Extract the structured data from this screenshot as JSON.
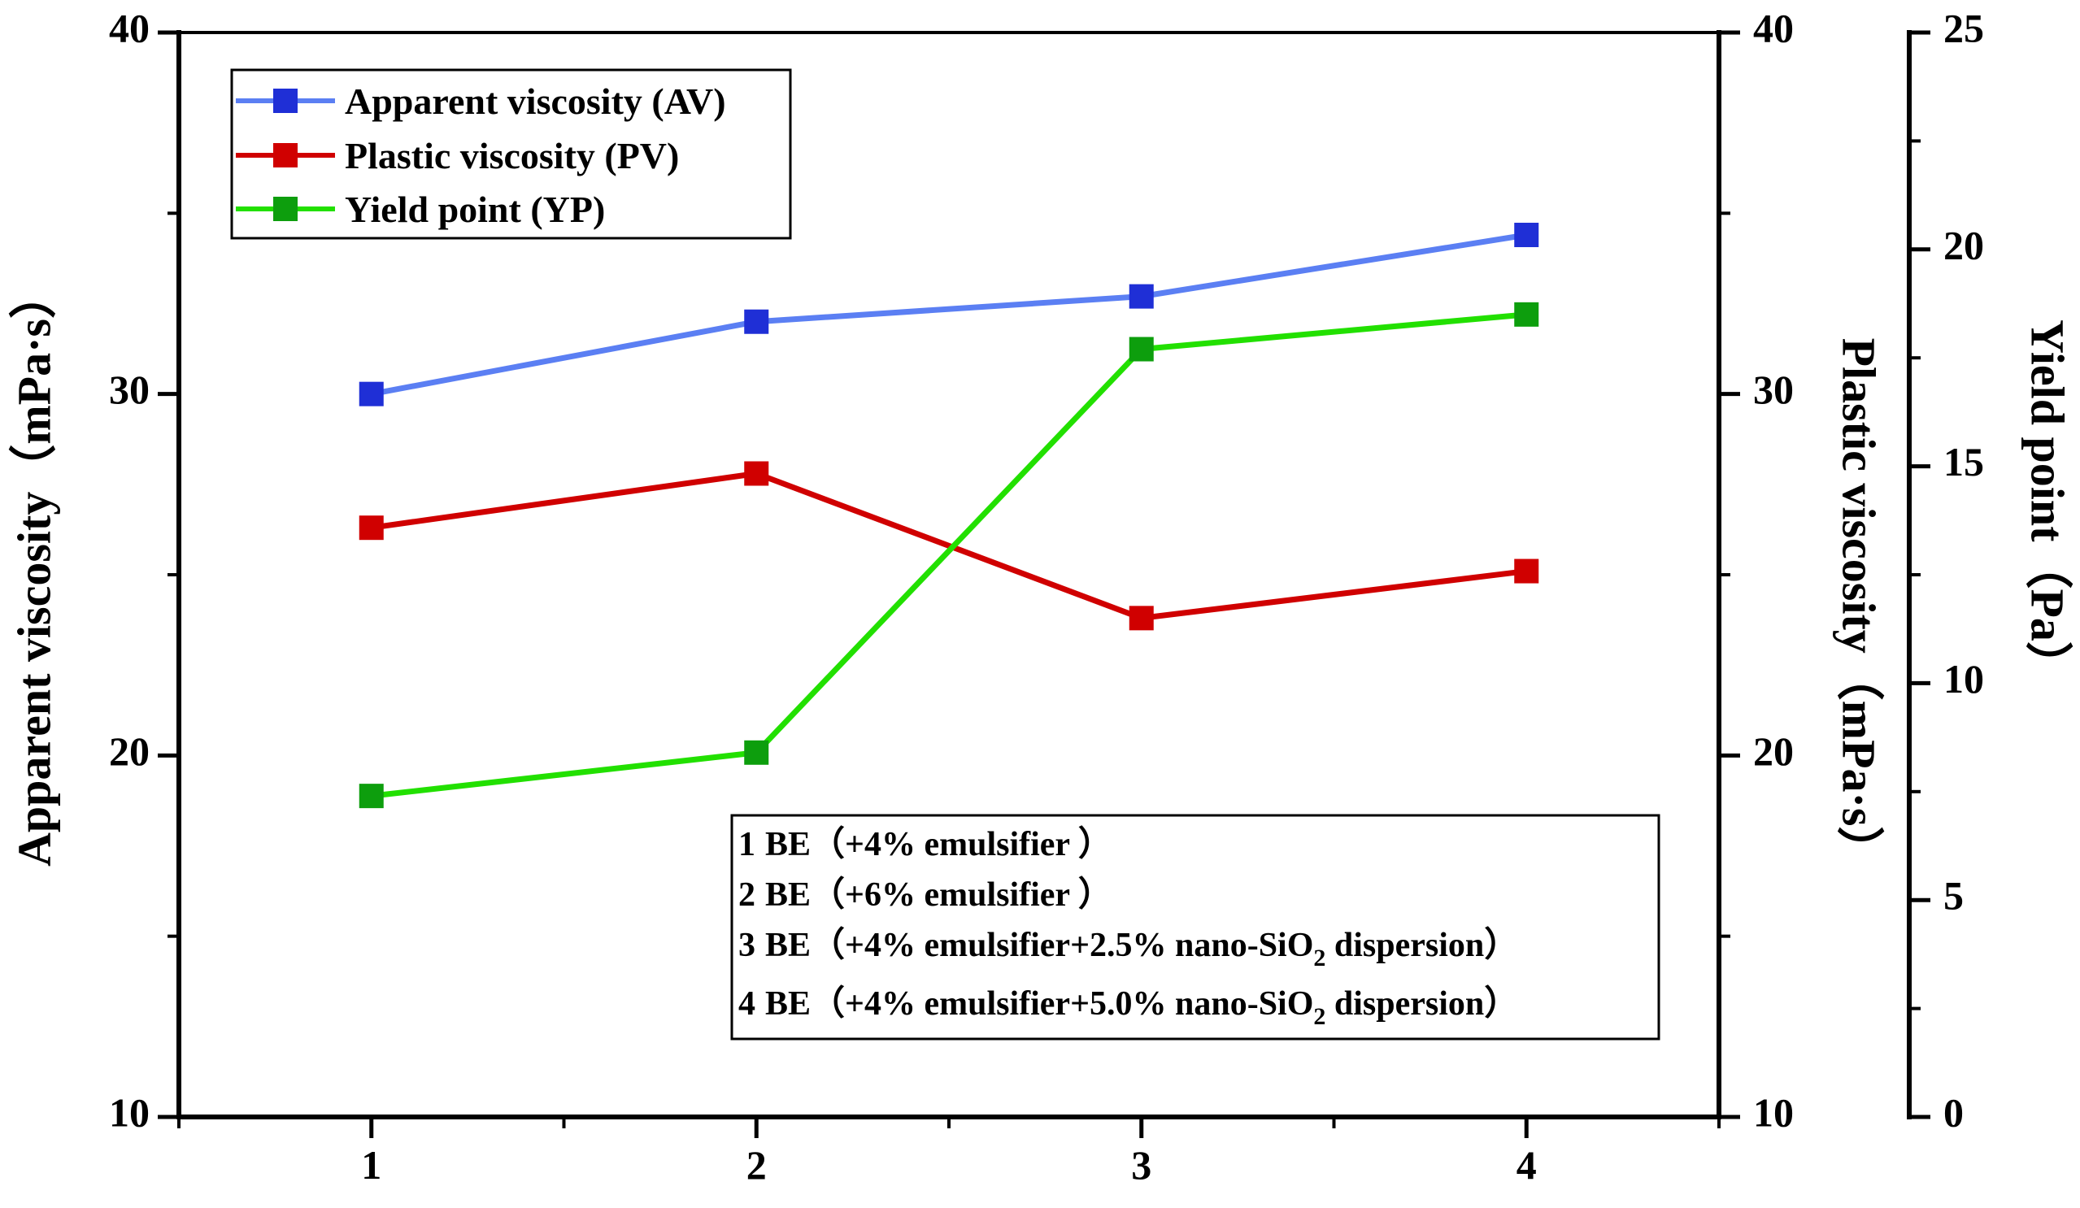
{
  "chart_data": {
    "type": "line",
    "categories": [
      "1",
      "2",
      "3",
      "4"
    ],
    "x": [
      1,
      2,
      3,
      4
    ],
    "xlim": [
      0.5,
      4.5
    ],
    "axes": {
      "left": {
        "title": "Apparent viscosity（mPa·s）",
        "ylim": [
          10,
          40
        ],
        "ticks": [
          10,
          20,
          30,
          40
        ],
        "tick_labels": [
          "10",
          "20",
          "30",
          "40"
        ]
      },
      "right1": {
        "title": "Plastic viscosity（mPa·s）",
        "ylim": [
          10,
          40
        ],
        "ticks": [
          10,
          20,
          30,
          40
        ],
        "tick_labels": [
          "10",
          "20",
          "30",
          "40"
        ]
      },
      "right2": {
        "title": "Yield point（Pa）",
        "ylim": [
          0,
          25
        ],
        "ticks": [
          0,
          5,
          10,
          15,
          20,
          25
        ],
        "tick_labels": [
          "0",
          "5",
          "10",
          "15",
          "20",
          "25"
        ]
      }
    },
    "series": [
      {
        "name": "Apparent viscosity (AV)",
        "axis": "left",
        "color": "#5b7ff3",
        "marker_color": "#1f2fd6",
        "values": [
          30.0,
          32.0,
          32.7,
          34.4
        ]
      },
      {
        "name": "Plastic viscosity (PV)",
        "axis": "right1",
        "color": "#d00000",
        "marker_color": "#d00000",
        "values": [
          26.3,
          27.8,
          23.8,
          25.1
        ]
      },
      {
        "name": "Yield point (YP)",
        "axis": "right2",
        "color": "#22e000",
        "marker_color": "#0d9e0d",
        "values": [
          7.4,
          8.4,
          17.7,
          18.5
        ]
      }
    ],
    "legend_position": "top-left",
    "annotation": {
      "position": "bottom-right",
      "lines": [
        {
          "num": "1",
          "text": "BE（+4% emulsifier ）",
          "pre": "",
          "sub": "",
          "post": ""
        },
        {
          "num": "2",
          "text": "BE（+6% emulsifier ）",
          "pre": "",
          "sub": "",
          "post": ""
        },
        {
          "num": "3",
          "text": "",
          "pre": "BE（+4% emulsifier+2.5% nano-SiO",
          "sub": "2",
          "post": " dispersion）"
        },
        {
          "num": "4",
          "text": "",
          "pre": "BE（+4% emulsifier+5.0% nano-SiO",
          "sub": "2",
          "post": " dispersion）"
        }
      ]
    },
    "grid": false
  }
}
